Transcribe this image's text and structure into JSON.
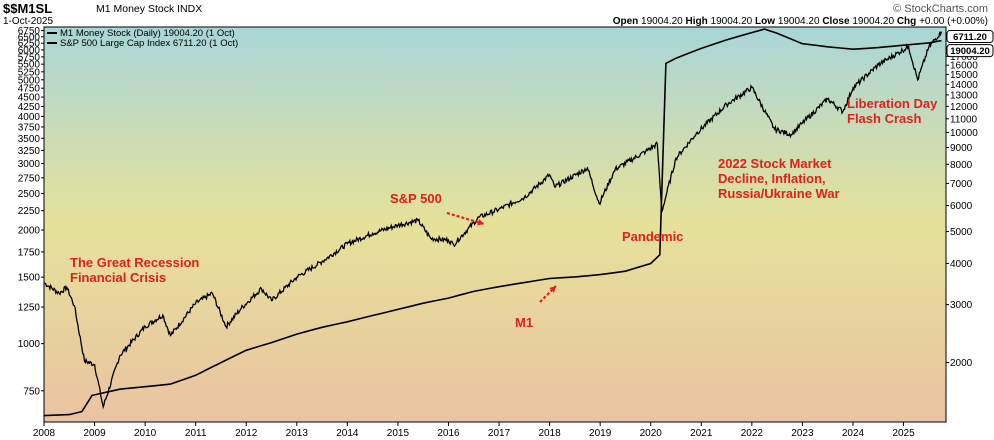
{
  "header": {
    "symbol": "$$M1SL",
    "name": "M1 Money Stock INDX",
    "date": "1-Oct-2025",
    "brand": "© StockCharts.com",
    "open_label": "Open",
    "open": "19004.20",
    "high_label": "High",
    "high": "19004.20",
    "low_label": "Low",
    "low": "19004.20",
    "close_label": "Close",
    "close": "19004.20",
    "chg_label": "Chg",
    "chg": "+0.00 (+0.00%)"
  },
  "colors": {
    "background_top": "#a9d6d8",
    "background_mid": "#e6e19a",
    "background_bottom": "#eac3a2",
    "line": "#000000",
    "annotation": "#e0201b"
  },
  "chart_data": {
    "type": "line",
    "x_axis": {
      "type": "time",
      "range": [
        2008.0,
        2025.84
      ],
      "tick_labels": [
        "2008",
        "2009",
        "2010",
        "2011",
        "2012",
        "2013",
        "2014",
        "2015",
        "2016",
        "2017",
        "2018",
        "2019",
        "2020",
        "2021",
        "2022",
        "2023",
        "2024",
        "2025"
      ]
    },
    "y_left": {
      "scale": "log",
      "range": [
        620,
        6900
      ],
      "tick_labels": [
        "750",
        "1000",
        "1250",
        "1500",
        "1750",
        "2000",
        "2250",
        "2500",
        "2750",
        "3000",
        "3250",
        "3500",
        "3750",
        "4000",
        "4250",
        "4500",
        "4750",
        "5000",
        "5250",
        "5500",
        "5750",
        "6000",
        "6250",
        "6500",
        "6750"
      ]
    },
    "y_right": {
      "scale": "log",
      "range": [
        1320,
        20900
      ],
      "tick_labels": [
        "2000",
        "3000",
        "4000",
        "5000",
        "6000",
        "7000",
        "8000",
        "9000",
        "10000",
        "11000",
        "12000",
        "13000",
        "14000",
        "15000",
        "16000",
        "17000",
        "18000"
      ]
    },
    "grid": false,
    "legend_position": "top-left",
    "series": [
      {
        "name": "M1 Money Stock (Daily) 19004.20 (1 Oct)",
        "axis": "right",
        "last_value_label": "19004.20",
        "points": [
          [
            2008.0,
            1380
          ],
          [
            2008.5,
            1390
          ],
          [
            2008.75,
            1420
          ],
          [
            2008.95,
            1590
          ],
          [
            2009.5,
            1660
          ],
          [
            2010.0,
            1690
          ],
          [
            2010.5,
            1720
          ],
          [
            2011.0,
            1830
          ],
          [
            2011.5,
            2000
          ],
          [
            2012.0,
            2180
          ],
          [
            2012.5,
            2300
          ],
          [
            2013.0,
            2440
          ],
          [
            2013.5,
            2560
          ],
          [
            2014.0,
            2660
          ],
          [
            2014.5,
            2780
          ],
          [
            2015.0,
            2900
          ],
          [
            2015.5,
            3030
          ],
          [
            2016.0,
            3140
          ],
          [
            2016.5,
            3290
          ],
          [
            2017.0,
            3400
          ],
          [
            2017.5,
            3500
          ],
          [
            2018.0,
            3600
          ],
          [
            2018.5,
            3640
          ],
          [
            2019.0,
            3700
          ],
          [
            2019.5,
            3790
          ],
          [
            2020.0,
            4000
          ],
          [
            2020.18,
            4250
          ],
          [
            2020.3,
            16200
          ],
          [
            2020.5,
            16800
          ],
          [
            2021.0,
            18000
          ],
          [
            2021.5,
            19100
          ],
          [
            2022.0,
            20100
          ],
          [
            2022.25,
            20600
          ],
          [
            2022.5,
            20000
          ],
          [
            2023.0,
            18600
          ],
          [
            2023.5,
            18200
          ],
          [
            2024.0,
            17900
          ],
          [
            2024.5,
            18100
          ],
          [
            2025.0,
            18400
          ],
          [
            2025.5,
            18700
          ],
          [
            2025.75,
            19004
          ]
        ]
      },
      {
        "name": "S&P 500 Large Cap Index 6711.20 (1 Oct)",
        "axis": "left",
        "last_value_label": "6711.20",
        "points": [
          [
            2008.0,
            1450
          ],
          [
            2008.3,
            1360
          ],
          [
            2008.45,
            1410
          ],
          [
            2008.6,
            1260
          ],
          [
            2008.8,
            900
          ],
          [
            2009.0,
            880
          ],
          [
            2009.17,
            680
          ],
          [
            2009.5,
            930
          ],
          [
            2010.0,
            1110
          ],
          [
            2010.35,
            1190
          ],
          [
            2010.5,
            1050
          ],
          [
            2011.0,
            1280
          ],
          [
            2011.33,
            1360
          ],
          [
            2011.6,
            1110
          ],
          [
            2011.9,
            1240
          ],
          [
            2012.3,
            1400
          ],
          [
            2012.5,
            1300
          ],
          [
            2013.0,
            1500
          ],
          [
            2013.5,
            1650
          ],
          [
            2014.0,
            1840
          ],
          [
            2014.5,
            1960
          ],
          [
            2015.0,
            2060
          ],
          [
            2015.4,
            2120
          ],
          [
            2015.65,
            1900
          ],
          [
            2016.0,
            1880
          ],
          [
            2016.1,
            1830
          ],
          [
            2016.6,
            2160
          ],
          [
            2017.0,
            2270
          ],
          [
            2017.5,
            2440
          ],
          [
            2018.0,
            2800
          ],
          [
            2018.1,
            2600
          ],
          [
            2018.75,
            2920
          ],
          [
            2018.98,
            2350
          ],
          [
            2019.3,
            2900
          ],
          [
            2019.9,
            3230
          ],
          [
            2020.13,
            3380
          ],
          [
            2020.22,
            2240
          ],
          [
            2020.5,
            3100
          ],
          [
            2020.9,
            3600
          ],
          [
            2021.5,
            4300
          ],
          [
            2022.0,
            4770
          ],
          [
            2022.45,
            3700
          ],
          [
            2022.78,
            3580
          ],
          [
            2023.0,
            3840
          ],
          [
            2023.5,
            4450
          ],
          [
            2023.8,
            4120
          ],
          [
            2024.0,
            4760
          ],
          [
            2024.5,
            5480
          ],
          [
            2025.1,
            6120
          ],
          [
            2025.28,
            5000
          ],
          [
            2025.5,
            6100
          ],
          [
            2025.75,
            6711
          ]
        ]
      }
    ],
    "annotations": [
      {
        "text": "The Great Recession",
        "line2": "Financial Crisis"
      },
      {
        "text": "S&P 500"
      },
      {
        "text": "M1"
      },
      {
        "text": "Pandemic"
      },
      {
        "text": "2022 Stock Market",
        "line2": "Decline, Inflation,",
        "line3": "Russia/Ukraine War"
      },
      {
        "text": "Liberation Day",
        "line2": "Flash Crash"
      }
    ]
  }
}
